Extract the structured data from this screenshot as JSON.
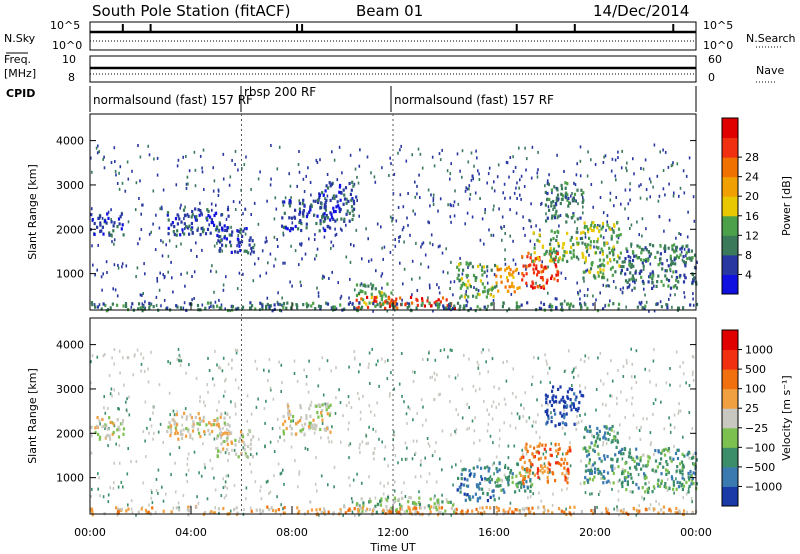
{
  "header": {
    "station": "South Pole Station (fitACF)",
    "beam": "Beam 01",
    "date": "14/Dec/2014"
  },
  "status_panels": {
    "nsky_label": "N.Sky",
    "nsky_ticks": [
      "10^5",
      "10^0"
    ],
    "nsearch_label": "N.Search",
    "nsearch_ticks": [
      "10^5",
      "10^0"
    ],
    "freq_label_1": "Freq.",
    "freq_label_2": "[MHz]",
    "freq_ticks": [
      "10",
      "8"
    ],
    "nave_label": "Nave",
    "nave_ticks": [
      "60",
      "0"
    ],
    "cpid_label": "CPID",
    "cpid_segments": [
      {
        "label": "normalsound (fast) 157 RF",
        "start_hour": 0,
        "end_hour": 6
      },
      {
        "label": "rbsp 200 RF",
        "start_hour": 6,
        "end_hour": 12
      },
      {
        "label": "normalsound (fast) 157 RF",
        "start_hour": 12,
        "end_hour": 24
      }
    ]
  },
  "chart_data": [
    {
      "type": "heatmap",
      "quantity": "Power",
      "ylabel": "Slant Range [km]",
      "yticks": [
        "1000",
        "2000",
        "3000",
        "4000"
      ],
      "ylim": [
        180,
        4600
      ],
      "xlim": [
        0,
        24
      ],
      "colorbar_label": "Power [dB]",
      "colorbar_ticks": [
        "4",
        "8",
        "12",
        "16",
        "20",
        "24",
        "28"
      ],
      "colorbar_colors": [
        "#1010e0",
        "#2838a0",
        "#3a7a5a",
        "#4ca04a",
        "#e8c800",
        "#f0a000",
        "#f07000",
        "#f03010",
        "#e00000"
      ],
      "regions": [
        {
          "t0": 0.0,
          "t1": 1.3,
          "r0": 1900,
          "r1": 2400,
          "level": 1
        },
        {
          "t0": 3.0,
          "t1": 5.5,
          "r0": 1900,
          "r1": 2500,
          "level": 1
        },
        {
          "t0": 5.0,
          "t1": 6.5,
          "r0": 1500,
          "r1": 2100,
          "level": 1
        },
        {
          "t0": 7.5,
          "t1": 9.5,
          "r0": 2000,
          "r1": 2700,
          "level": 1
        },
        {
          "t0": 9.0,
          "t1": 10.5,
          "r0": 2200,
          "r1": 3100,
          "level": 1
        },
        {
          "t0": 10.5,
          "t1": 12.0,
          "r0": 300,
          "r1": 800,
          "level": 3
        },
        {
          "t0": 10.5,
          "t1": 14.5,
          "r0": 250,
          "r1": 500,
          "level": 7
        },
        {
          "t0": 14.5,
          "t1": 16.0,
          "r0": 500,
          "r1": 1300,
          "level": 3
        },
        {
          "t0": 16.0,
          "t1": 17.0,
          "r0": 600,
          "r1": 1200,
          "level": 5
        },
        {
          "t0": 17.0,
          "t1": 18.5,
          "r0": 700,
          "r1": 1500,
          "level": 7
        },
        {
          "t0": 17.5,
          "t1": 19.5,
          "r0": 1300,
          "r1": 2000,
          "level": 3
        },
        {
          "t0": 18.0,
          "t1": 19.5,
          "r0": 2200,
          "r1": 3100,
          "level": 2
        },
        {
          "t0": 19.5,
          "t1": 21.0,
          "r0": 900,
          "r1": 2200,
          "level": 3
        },
        {
          "t0": 21.0,
          "t1": 24.0,
          "r0": 700,
          "r1": 1700,
          "level": 2
        },
        {
          "t0": 0.0,
          "t1": 24.0,
          "r0": 200,
          "r1": 380,
          "level": 2
        }
      ]
    },
    {
      "type": "heatmap",
      "quantity": "Velocity",
      "ylabel": "Slant Range [km]",
      "yticks": [
        "1000",
        "2000",
        "3000",
        "4000"
      ],
      "ylim": [
        180,
        4600
      ],
      "xlim": [
        0,
        24
      ],
      "colorbar_label": "Velocity [m s⁻¹]",
      "colorbar_ticks": [
        "1000",
        "500",
        "100",
        "25",
        "−25",
        "−100",
        "−500",
        "−1000"
      ],
      "colorbar_colors": [
        "#1a3aa8",
        "#3a7ab0",
        "#3c8e6a",
        "#7cc050",
        "#c8c8c0",
        "#f0a040",
        "#f07010",
        "#f03010",
        "#e00000"
      ],
      "regions": [
        {
          "t0": 0.0,
          "t1": 1.3,
          "r0": 1900,
          "r1": 2400,
          "level": 4
        },
        {
          "t0": 3.0,
          "t1": 5.5,
          "r0": 1900,
          "r1": 2500,
          "level": 4
        },
        {
          "t0": 5.0,
          "t1": 6.5,
          "r0": 1500,
          "r1": 2100,
          "level": 4
        },
        {
          "t0": 7.5,
          "t1": 9.5,
          "r0": 2000,
          "r1": 2700,
          "level": 4
        },
        {
          "t0": 10.5,
          "t1": 14.5,
          "r0": 250,
          "r1": 600,
          "level": 3
        },
        {
          "t0": 14.5,
          "t1": 16.0,
          "r0": 500,
          "r1": 1300,
          "level": 1
        },
        {
          "t0": 16.0,
          "t1": 17.5,
          "r0": 700,
          "r1": 1400,
          "level": 2
        },
        {
          "t0": 17.0,
          "t1": 19.0,
          "r0": 900,
          "r1": 1800,
          "level": 6
        },
        {
          "t0": 18.0,
          "t1": 19.5,
          "r0": 2200,
          "r1": 3100,
          "level": 0
        },
        {
          "t0": 19.5,
          "t1": 21.0,
          "r0": 900,
          "r1": 2200,
          "level": 2
        },
        {
          "t0": 21.0,
          "t1": 24.0,
          "r0": 700,
          "r1": 1700,
          "level": 2
        },
        {
          "t0": 0.0,
          "t1": 24.0,
          "r0": 200,
          "r1": 380,
          "level": 5
        }
      ]
    }
  ],
  "x_axis": {
    "label": "Time UT",
    "ticks": [
      "00:00",
      "04:00",
      "08:00",
      "12:00",
      "16:00",
      "20:00",
      "00:00"
    ]
  }
}
